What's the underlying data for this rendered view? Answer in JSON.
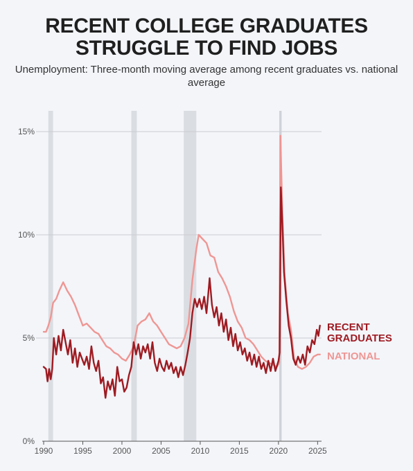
{
  "header": {
    "title_line1": "RECENT COLLEGE GRADUATES",
    "title_line2": "STRUGGLE TO FIND JOBS",
    "subtitle": "Unemployment: Three-month moving average among recent graduates vs. national average"
  },
  "chart_data": {
    "type": "line",
    "title": "RECENT COLLEGE GRADUATES STRUGGLE TO FIND JOBS",
    "subtitle": "Unemployment: Three-month moving average among recent graduates vs. national average",
    "xlim": [
      1990,
      2025.5
    ],
    "ylim": [
      0,
      15
    ],
    "x_ticks": [
      1990,
      1995,
      2000,
      2005,
      2010,
      2015,
      2020,
      2025
    ],
    "x_tick_labels": [
      "1990",
      "1995",
      "2000",
      "2005",
      "2010",
      "2015",
      "2020",
      "2025"
    ],
    "y_ticks": [
      0,
      5,
      10,
      15
    ],
    "y_tick_labels": [
      "0%",
      "5%",
      "10%",
      "15%"
    ],
    "grid": "horizontal",
    "recessions": [
      [
        1990.6,
        1991.2
      ],
      [
        2001.2,
        2001.9
      ],
      [
        2007.9,
        2009.5
      ],
      [
        2020.1,
        2020.4
      ]
    ],
    "series": [
      {
        "name": "NATIONAL",
        "color": "#ef9693",
        "points": [
          [
            1990.0,
            5.3
          ],
          [
            1990.3,
            5.3
          ],
          [
            1990.6,
            5.6
          ],
          [
            1990.9,
            6.0
          ],
          [
            1991.2,
            6.7
          ],
          [
            1991.6,
            6.9
          ],
          [
            1992.0,
            7.3
          ],
          [
            1992.5,
            7.7
          ],
          [
            1993.0,
            7.3
          ],
          [
            1993.5,
            7.0
          ],
          [
            1994.0,
            6.6
          ],
          [
            1994.5,
            6.1
          ],
          [
            1995.0,
            5.6
          ],
          [
            1995.5,
            5.7
          ],
          [
            1996.0,
            5.5
          ],
          [
            1996.5,
            5.3
          ],
          [
            1997.0,
            5.2
          ],
          [
            1997.5,
            4.9
          ],
          [
            1998.0,
            4.6
          ],
          [
            1998.5,
            4.5
          ],
          [
            1999.0,
            4.3
          ],
          [
            1999.5,
            4.2
          ],
          [
            2000.0,
            4.0
          ],
          [
            2000.5,
            3.9
          ],
          [
            2001.0,
            4.2
          ],
          [
            2001.5,
            4.6
          ],
          [
            2002.0,
            5.6
          ],
          [
            2002.5,
            5.8
          ],
          [
            2003.0,
            5.9
          ],
          [
            2003.5,
            6.2
          ],
          [
            2004.0,
            5.8
          ],
          [
            2004.5,
            5.6
          ],
          [
            2005.0,
            5.3
          ],
          [
            2005.5,
            5.0
          ],
          [
            2006.0,
            4.7
          ],
          [
            2006.5,
            4.6
          ],
          [
            2007.0,
            4.5
          ],
          [
            2007.5,
            4.6
          ],
          [
            2008.0,
            5.0
          ],
          [
            2008.5,
            5.7
          ],
          [
            2009.0,
            7.8
          ],
          [
            2009.5,
            9.3
          ],
          [
            2009.8,
            10.0
          ],
          [
            2010.3,
            9.8
          ],
          [
            2010.8,
            9.6
          ],
          [
            2011.3,
            9.0
          ],
          [
            2011.8,
            8.9
          ],
          [
            2012.3,
            8.2
          ],
          [
            2012.8,
            7.9
          ],
          [
            2013.3,
            7.5
          ],
          [
            2013.8,
            7.0
          ],
          [
            2014.3,
            6.3
          ],
          [
            2014.8,
            5.8
          ],
          [
            2015.3,
            5.5
          ],
          [
            2015.8,
            5.0
          ],
          [
            2016.3,
            4.9
          ],
          [
            2016.8,
            4.7
          ],
          [
            2017.3,
            4.4
          ],
          [
            2017.8,
            4.1
          ],
          [
            2018.3,
            3.9
          ],
          [
            2018.8,
            3.8
          ],
          [
            2019.3,
            3.7
          ],
          [
            2019.8,
            3.6
          ],
          [
            2020.1,
            3.8
          ],
          [
            2020.25,
            14.8
          ],
          [
            2020.5,
            11.0
          ],
          [
            2020.8,
            8.0
          ],
          [
            2021.2,
            6.2
          ],
          [
            2021.6,
            5.4
          ],
          [
            2022.0,
            4.0
          ],
          [
            2022.5,
            3.6
          ],
          [
            2023.0,
            3.5
          ],
          [
            2023.5,
            3.6
          ],
          [
            2024.0,
            3.8
          ],
          [
            2024.5,
            4.1
          ],
          [
            2025.0,
            4.2
          ],
          [
            2025.3,
            4.2
          ]
        ]
      },
      {
        "name": "RECENT GRADUATES",
        "color": "#9e1b22",
        "points": [
          [
            1990.0,
            3.6
          ],
          [
            1990.3,
            3.5
          ],
          [
            1990.5,
            2.9
          ],
          [
            1990.7,
            3.5
          ],
          [
            1990.9,
            3.0
          ],
          [
            1991.1,
            3.5
          ],
          [
            1991.3,
            5.0
          ],
          [
            1991.6,
            4.2
          ],
          [
            1991.9,
            5.1
          ],
          [
            1992.2,
            4.4
          ],
          [
            1992.5,
            5.4
          ],
          [
            1992.8,
            4.8
          ],
          [
            1993.1,
            4.2
          ],
          [
            1993.4,
            4.9
          ],
          [
            1993.7,
            3.8
          ],
          [
            1994.0,
            4.5
          ],
          [
            1994.3,
            3.6
          ],
          [
            1994.6,
            4.3
          ],
          [
            1994.9,
            4.0
          ],
          [
            1995.2,
            3.7
          ],
          [
            1995.5,
            4.1
          ],
          [
            1995.8,
            3.5
          ],
          [
            1996.1,
            4.6
          ],
          [
            1996.4,
            3.8
          ],
          [
            1996.7,
            3.4
          ],
          [
            1997.0,
            3.9
          ],
          [
            1997.3,
            2.8
          ],
          [
            1997.6,
            3.1
          ],
          [
            1997.9,
            2.1
          ],
          [
            1998.2,
            2.9
          ],
          [
            1998.5,
            2.5
          ],
          [
            1998.8,
            3.0
          ],
          [
            1999.1,
            2.2
          ],
          [
            1999.4,
            3.6
          ],
          [
            1999.7,
            2.9
          ],
          [
            2000.0,
            3.0
          ],
          [
            2000.3,
            2.4
          ],
          [
            2000.6,
            2.6
          ],
          [
            2000.9,
            3.2
          ],
          [
            2001.2,
            3.6
          ],
          [
            2001.5,
            4.8
          ],
          [
            2001.8,
            4.2
          ],
          [
            2002.1,
            4.7
          ],
          [
            2002.4,
            4.0
          ],
          [
            2002.7,
            4.6
          ],
          [
            2003.0,
            4.3
          ],
          [
            2003.3,
            4.7
          ],
          [
            2003.6,
            4.0
          ],
          [
            2003.9,
            4.8
          ],
          [
            2004.2,
            3.8
          ],
          [
            2004.5,
            3.4
          ],
          [
            2004.8,
            4.0
          ],
          [
            2005.1,
            3.6
          ],
          [
            2005.4,
            3.4
          ],
          [
            2005.7,
            3.9
          ],
          [
            2006.0,
            3.5
          ],
          [
            2006.3,
            3.8
          ],
          [
            2006.6,
            3.3
          ],
          [
            2006.9,
            3.6
          ],
          [
            2007.2,
            3.1
          ],
          [
            2007.5,
            3.6
          ],
          [
            2007.8,
            3.2
          ],
          [
            2008.1,
            3.7
          ],
          [
            2008.4,
            4.3
          ],
          [
            2008.7,
            5.0
          ],
          [
            2009.0,
            6.2
          ],
          [
            2009.3,
            6.9
          ],
          [
            2009.6,
            6.5
          ],
          [
            2009.9,
            6.9
          ],
          [
            2010.2,
            6.4
          ],
          [
            2010.5,
            7.0
          ],
          [
            2010.8,
            6.2
          ],
          [
            2011.0,
            7.0
          ],
          [
            2011.2,
            7.9
          ],
          [
            2011.5,
            6.6
          ],
          [
            2011.8,
            6.0
          ],
          [
            2012.1,
            6.5
          ],
          [
            2012.4,
            5.6
          ],
          [
            2012.7,
            6.2
          ],
          [
            2013.0,
            5.3
          ],
          [
            2013.3,
            5.9
          ],
          [
            2013.6,
            4.9
          ],
          [
            2013.9,
            5.5
          ],
          [
            2014.2,
            4.6
          ],
          [
            2014.5,
            5.2
          ],
          [
            2014.8,
            4.4
          ],
          [
            2015.1,
            4.8
          ],
          [
            2015.4,
            4.2
          ],
          [
            2015.7,
            4.5
          ],
          [
            2016.0,
            3.9
          ],
          [
            2016.3,
            4.3
          ],
          [
            2016.6,
            3.7
          ],
          [
            2016.9,
            4.2
          ],
          [
            2017.2,
            3.6
          ],
          [
            2017.5,
            4.1
          ],
          [
            2017.8,
            3.5
          ],
          [
            2018.1,
            3.8
          ],
          [
            2018.4,
            3.3
          ],
          [
            2018.7,
            3.9
          ],
          [
            2019.0,
            3.4
          ],
          [
            2019.3,
            4.0
          ],
          [
            2019.6,
            3.4
          ],
          [
            2020.0,
            3.9
          ],
          [
            2020.15,
            4.3
          ],
          [
            2020.3,
            12.3
          ],
          [
            2020.5,
            10.5
          ],
          [
            2020.7,
            8.2
          ],
          [
            2021.0,
            6.8
          ],
          [
            2021.3,
            5.6
          ],
          [
            2021.6,
            5.0
          ],
          [
            2021.9,
            4.0
          ],
          [
            2022.2,
            3.7
          ],
          [
            2022.5,
            4.1
          ],
          [
            2022.8,
            3.8
          ],
          [
            2023.1,
            4.2
          ],
          [
            2023.4,
            3.7
          ],
          [
            2023.7,
            4.6
          ],
          [
            2024.0,
            4.3
          ],
          [
            2024.3,
            4.9
          ],
          [
            2024.6,
            4.7
          ],
          [
            2024.9,
            5.4
          ],
          [
            2025.1,
            5.1
          ],
          [
            2025.3,
            5.6
          ]
        ]
      }
    ],
    "end_labels": [
      {
        "series": "RECENT GRADUATES",
        "lines": [
          "RECENT",
          "GRADUATES"
        ],
        "color": "#9e1b22"
      },
      {
        "series": "NATIONAL",
        "lines": [
          "NATIONAL"
        ],
        "color": "#ef9693"
      }
    ]
  }
}
